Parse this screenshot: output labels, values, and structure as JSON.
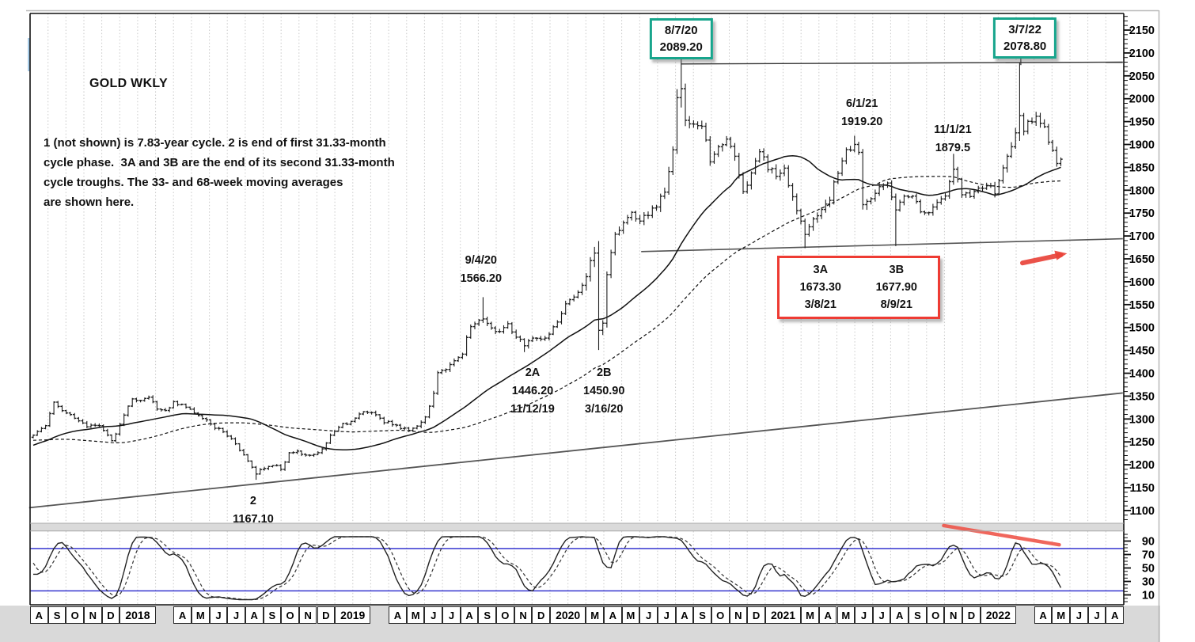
{
  "title": "GOLD WKLY",
  "description": "1 (not shown) is 7.83-year cycle. 2 is end of first 31.33-month\ncycle phase.  3A and 3B are the end of its second 31.33-month\ncycle troughs. The 33- and 68-week moving averages\nare shown here.",
  "chart_data": {
    "type": "ohlc",
    "title": "GOLD WKLY",
    "timeframe": "weekly",
    "price_axis": {
      "side": "right",
      "labels": [
        2150,
        2100,
        2050,
        2000,
        1950,
        1900,
        1850,
        1800,
        1750,
        1700,
        1650,
        1600,
        1550,
        1500,
        1450,
        1400,
        1350,
        1300,
        1250,
        1200,
        1150,
        1100
      ],
      "major_step": 50,
      "minor_step": 10,
      "min": 1080,
      "max": 2185
    },
    "oscillator": {
      "name": "stochastic",
      "labels": [
        90,
        70,
        50,
        30,
        10
      ],
      "upper_band_value": 79,
      "lower_band_value": 16,
      "band_color": "#2424cc",
      "k_style": "solid",
      "d_style": "dashed"
    },
    "x_axis_cells": [
      {
        "label": "A",
        "span": 1
      },
      {
        "label": "S",
        "span": 1
      },
      {
        "label": "O",
        "span": 1
      },
      {
        "label": "N",
        "span": 1
      },
      {
        "label": "D",
        "span": 1
      },
      {
        "label": "2018",
        "span": 2
      },
      {
        "label": "",
        "span": 1
      },
      {
        "label": "A",
        "span": 1
      },
      {
        "label": "M",
        "span": 1
      },
      {
        "label": "J",
        "span": 1
      },
      {
        "label": "J",
        "span": 1
      },
      {
        "label": "A",
        "span": 1
      },
      {
        "label": "S",
        "span": 1
      },
      {
        "label": "O",
        "span": 1
      },
      {
        "label": "N",
        "span": 1
      },
      {
        "label": "D",
        "span": 1
      },
      {
        "label": "2019",
        "span": 2
      },
      {
        "label": "",
        "span": 1
      },
      {
        "label": "A",
        "span": 1
      },
      {
        "label": "M",
        "span": 1
      },
      {
        "label": "J",
        "span": 1
      },
      {
        "label": "J",
        "span": 1
      },
      {
        "label": "A",
        "span": 1
      },
      {
        "label": "S",
        "span": 1
      },
      {
        "label": "O",
        "span": 1
      },
      {
        "label": "N",
        "span": 1
      },
      {
        "label": "D",
        "span": 1
      },
      {
        "label": "2020",
        "span": 2
      },
      {
        "label": "M",
        "span": 1
      },
      {
        "label": "A",
        "span": 1
      },
      {
        "label": "M",
        "span": 1
      },
      {
        "label": "J",
        "span": 1
      },
      {
        "label": "J",
        "span": 1
      },
      {
        "label": "A",
        "span": 1
      },
      {
        "label": "S",
        "span": 1
      },
      {
        "label": "O",
        "span": 1
      },
      {
        "label": "N",
        "span": 1
      },
      {
        "label": "D",
        "span": 1
      },
      {
        "label": "2021",
        "span": 2
      },
      {
        "label": "M",
        "span": 1
      },
      {
        "label": "A",
        "span": 1
      },
      {
        "label": "M",
        "span": 1
      },
      {
        "label": "J",
        "span": 1
      },
      {
        "label": "J",
        "span": 1
      },
      {
        "label": "A",
        "span": 1
      },
      {
        "label": "S",
        "span": 1
      },
      {
        "label": "O",
        "span": 1
      },
      {
        "label": "N",
        "span": 1
      },
      {
        "label": "D",
        "span": 1
      },
      {
        "label": "2022",
        "span": 2
      },
      {
        "label": "",
        "span": 1
      },
      {
        "label": "A",
        "span": 1
      },
      {
        "label": "M",
        "span": 1
      },
      {
        "label": "J",
        "span": 1
      },
      {
        "label": "J",
        "span": 1
      },
      {
        "label": "A",
        "span": 1
      }
    ],
    "moving_averages": [
      {
        "name": "33-week",
        "period": 33,
        "style": "solid"
      },
      {
        "name": "68-week",
        "period": 68,
        "style": "dashed"
      }
    ],
    "trendlines": [
      {
        "name": "long-term-uptrend",
        "from": {
          "week": -1,
          "price": 1106
        },
        "to": {
          "week": 264,
          "price": 1357
        }
      },
      {
        "name": "double-top-resistance",
        "from": {
          "week": 157,
          "price": 2076
        },
        "to": {
          "week": 264,
          "price": 2080
        }
      },
      {
        "name": "cycle-low-support",
        "from": {
          "week": 147.3,
          "price": 1666
        },
        "to": {
          "week": 264,
          "price": 1694
        }
      }
    ],
    "red_arrow": {
      "from": {
        "week": 239.7,
        "price": 1641
      },
      "to": {
        "week": 250.5,
        "price": 1662
      },
      "color": "#e9443a"
    },
    "red_oscillator_trendline": {
      "from": {
        "week": 220.6,
        "value": 113
      },
      "to": {
        "week": 248.6,
        "value": 84.5
      },
      "color": "#ef564b"
    },
    "annotations": [
      {
        "id": "high-2020",
        "kind": "teal-box",
        "lines": [
          "8/7/20",
          "2089.20"
        ],
        "week": 157,
        "price": 2089.2
      },
      {
        "id": "high-2022",
        "kind": "teal-box",
        "lines": [
          "3/7/22",
          "2078.80"
        ],
        "week": 240.3,
        "price": 2078.8,
        "connector_week": 239.3
      },
      {
        "id": "cycle-3-box",
        "kind": "red-box",
        "columns": [
          [
            "3A",
            "1673.30",
            "3/8/21"
          ],
          [
            "3B",
            "1677.90",
            "8/9/21"
          ]
        ],
        "week": 199,
        "price": 1657
      },
      {
        "id": "label-9-4-20",
        "kind": "text",
        "lines": [
          "9/4/20",
          "1566.20"
        ],
        "week": 108.5,
        "price": 1666
      },
      {
        "id": "label-2a",
        "kind": "text",
        "lines": [
          "2A",
          "1446.20",
          "11/12/19"
        ],
        "week": 121,
        "price": 1420
      },
      {
        "id": "label-2b",
        "kind": "text",
        "lines": [
          "2B",
          "1450.90",
          "3/16/20"
        ],
        "week": 138.3,
        "price": 1420
      },
      {
        "id": "label-6-1-21",
        "kind": "text",
        "lines": [
          "6/1/21",
          "1919.20"
        ],
        "week": 200.8,
        "price": 2008
      },
      {
        "id": "label-11-1-21",
        "kind": "text",
        "lines": [
          "11/1/21",
          "1879.5"
        ],
        "week": 222.8,
        "price": 1951
      },
      {
        "id": "label-2",
        "kind": "text",
        "lines": [
          "2",
          "1167.10"
        ],
        "week": 53.3,
        "price": 1140
      }
    ],
    "bars": {
      "first_week_date": "2017-08",
      "last_week_date": "2022-05",
      "count": 250,
      "close_anchors": [
        [
          -68,
          1238
        ],
        [
          -62,
          1305
        ],
        [
          -57,
          1342
        ],
        [
          -50,
          1322
        ],
        [
          -45,
          1252
        ],
        [
          -40,
          1205
        ],
        [
          -36,
          1131
        ],
        [
          -31,
          1178
        ],
        [
          -26,
          1218
        ],
        [
          -21,
          1252
        ],
        [
          -16,
          1232
        ],
        [
          -11,
          1262
        ],
        [
          -8,
          1282
        ],
        [
          -5,
          1292
        ],
        [
          -3,
          1262
        ],
        [
          -1,
          1258
        ],
        [
          0,
          1268
        ],
        [
          3,
          1288
        ],
        [
          5,
          1338
        ],
        [
          7,
          1320
        ],
        [
          10,
          1302
        ],
        [
          13,
          1282
        ],
        [
          16,
          1288
        ],
        [
          19,
          1250
        ],
        [
          21,
          1288
        ],
        [
          24,
          1345
        ],
        [
          26,
          1338
        ],
        [
          28,
          1350
        ],
        [
          30,
          1324
        ],
        [
          32,
          1316
        ],
        [
          34,
          1338
        ],
        [
          37,
          1326
        ],
        [
          40,
          1308
        ],
        [
          42,
          1296
        ],
        [
          44,
          1282
        ],
        [
          46,
          1272
        ],
        [
          48,
          1256
        ],
        [
          50,
          1232
        ],
        [
          52,
          1210
        ],
        [
          54,
          1182
        ],
        [
          56,
          1192
        ],
        [
          58,
          1200
        ],
        [
          60,
          1192
        ],
        [
          62,
          1224
        ],
        [
          64,
          1230
        ],
        [
          66,
          1220
        ],
        [
          68,
          1224
        ],
        [
          70,
          1232
        ],
        [
          72,
          1262
        ],
        [
          74,
          1284
        ],
        [
          77,
          1294
        ],
        [
          80,
          1318
        ],
        [
          83,
          1308
        ],
        [
          85,
          1294
        ],
        [
          87,
          1290
        ],
        [
          89,
          1280
        ],
        [
          91,
          1278
        ],
        [
          93,
          1284
        ],
        [
          95,
          1302
        ],
        [
          97,
          1358
        ],
        [
          98,
          1402
        ],
        [
          100,
          1412
        ],
        [
          102,
          1426
        ],
        [
          104,
          1446
        ],
        [
          106,
          1504
        ],
        [
          108,
          1520
        ],
        [
          109,
          1516
        ],
        [
          111,
          1498
        ],
        [
          113,
          1492
        ],
        [
          115,
          1506
        ],
        [
          117,
          1482
        ],
        [
          119,
          1462
        ],
        [
          121,
          1474
        ],
        [
          123,
          1478
        ],
        [
          125,
          1482
        ],
        [
          127,
          1514
        ],
        [
          129,
          1552
        ],
        [
          131,
          1570
        ],
        [
          133,
          1588
        ],
        [
          135,
          1646
        ],
        [
          136,
          1668
        ],
        [
          137,
          1498
        ],
        [
          138,
          1512
        ],
        [
          139,
          1622
        ],
        [
          141,
          1702
        ],
        [
          143,
          1732
        ],
        [
          145,
          1748
        ],
        [
          147,
          1736
        ],
        [
          149,
          1744
        ],
        [
          151,
          1766
        ],
        [
          153,
          1802
        ],
        [
          155,
          1882
        ],
        [
          156,
          1998
        ],
        [
          157,
          2028
        ],
        [
          158,
          1952
        ],
        [
          160,
          1944
        ],
        [
          162,
          1946
        ],
        [
          164,
          1868
        ],
        [
          166,
          1898
        ],
        [
          168,
          1906
        ],
        [
          170,
          1876
        ],
        [
          172,
          1792
        ],
        [
          174,
          1842
        ],
        [
          176,
          1886
        ],
        [
          178,
          1850
        ],
        [
          180,
          1834
        ],
        [
          182,
          1846
        ],
        [
          184,
          1784
        ],
        [
          186,
          1730
        ],
        [
          187,
          1708
        ],
        [
          189,
          1740
        ],
        [
          191,
          1752
        ],
        [
          193,
          1784
        ],
        [
          195,
          1840
        ],
        [
          197,
          1886
        ],
        [
          199,
          1898
        ],
        [
          200,
          1878
        ],
        [
          201,
          1774
        ],
        [
          203,
          1786
        ],
        [
          205,
          1808
        ],
        [
          207,
          1812
        ],
        [
          209,
          1758
        ],
        [
          211,
          1784
        ],
        [
          213,
          1790
        ],
        [
          215,
          1754
        ],
        [
          217,
          1750
        ],
        [
          219,
          1774
        ],
        [
          221,
          1792
        ],
        [
          223,
          1848
        ],
        [
          225,
          1794
        ],
        [
          227,
          1784
        ],
        [
          229,
          1800
        ],
        [
          231,
          1814
        ],
        [
          233,
          1794
        ],
        [
          235,
          1854
        ],
        [
          237,
          1894
        ],
        [
          239,
          1968
        ],
        [
          240,
          1924
        ],
        [
          241,
          1950
        ],
        [
          243,
          1958
        ],
        [
          245,
          1934
        ],
        [
          246,
          1910
        ],
        [
          247,
          1884
        ],
        [
          248,
          1854
        ],
        [
          249,
          1866
        ]
      ],
      "volatility_anchors": [
        [
          -68,
          14
        ],
        [
          0,
          13
        ],
        [
          20,
          12
        ],
        [
          50,
          11
        ],
        [
          60,
          10
        ],
        [
          95,
          13
        ],
        [
          105,
          18
        ],
        [
          120,
          16
        ],
        [
          130,
          20
        ],
        [
          135,
          34
        ],
        [
          136,
          48
        ],
        [
          137,
          85
        ],
        [
          138,
          42
        ],
        [
          140,
          26
        ],
        [
          145,
          22
        ],
        [
          150,
          26
        ],
        [
          154,
          34
        ],
        [
          156,
          52
        ],
        [
          157,
          58
        ],
        [
          158,
          46
        ],
        [
          160,
          30
        ],
        [
          165,
          28
        ],
        [
          172,
          30
        ],
        [
          180,
          26
        ],
        [
          187,
          26
        ],
        [
          195,
          26
        ],
        [
          199,
          30
        ],
        [
          201,
          34
        ],
        [
          205,
          20
        ],
        [
          208,
          22
        ],
        [
          209,
          62
        ],
        [
          210,
          24
        ],
        [
          215,
          18
        ],
        [
          220,
          20
        ],
        [
          223,
          24
        ],
        [
          230,
          20
        ],
        [
          235,
          26
        ],
        [
          238,
          30
        ],
        [
          239,
          72
        ],
        [
          240,
          44
        ],
        [
          242,
          30
        ],
        [
          245,
          26
        ],
        [
          249,
          30
        ]
      ],
      "forced_extremes": {
        "54": {
          "low": 1167.1
        },
        "109": {
          "high": 1566.2
        },
        "119": {
          "low": 1446.2
        },
        "137": {
          "low": 1450.9
        },
        "157": {
          "high": 2089.2
        },
        "187": {
          "low": 1673.3
        },
        "199": {
          "high": 1919.2
        },
        "209": {
          "low": 1677.9
        },
        "223": {
          "high": 1879.5
        },
        "239": {
          "high": 2078.8
        }
      }
    },
    "key_points": [
      {
        "date": "8/7/20",
        "price": 2089.2
      },
      {
        "date": "3/7/22",
        "price": 2078.8
      },
      {
        "date": "9/4/20",
        "price": 1566.2
      },
      {
        "date": "11/12/19",
        "price": 1446.2
      },
      {
        "date": "3/16/20",
        "price": 1450.9
      },
      {
        "date": "6/1/21",
        "price": 1919.2
      },
      {
        "date": "11/1/21",
        "price": 1879.5
      },
      {
        "date": "3/8/21",
        "price": 1673.3
      },
      {
        "date": "8/9/21",
        "price": 1677.9
      },
      {
        "date": "2",
        "price": 1167.1
      }
    ],
    "colors": {
      "teal_box_border": "#17a58c",
      "red_box_border": "#ee3b33",
      "oscillator_band": "#2424cc",
      "arrow_red": "#e9443a"
    }
  }
}
